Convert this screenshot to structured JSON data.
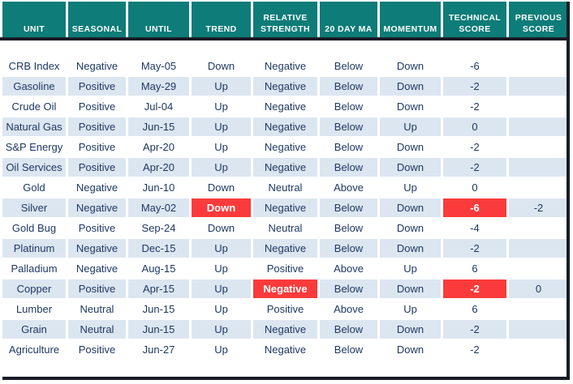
{
  "colors": {
    "header_bg": "#0e7c78",
    "header_text": "#ffffff",
    "frame_dark": "#181c26",
    "row_stripe": "#dce6f1",
    "row_plain": "#ffffff",
    "cell_text": "#1f3864",
    "highlight_bg": "#fb3b3b",
    "highlight_text": "#ffffff"
  },
  "table": {
    "columns": [
      {
        "key": "unit",
        "label": "UNIT"
      },
      {
        "key": "seasonal",
        "label": "SEASONAL"
      },
      {
        "key": "until",
        "label": "UNTIL"
      },
      {
        "key": "trend",
        "label": "TREND"
      },
      {
        "key": "relative_strength",
        "label": "RELATIVE STRENGTH"
      },
      {
        "key": "ma20",
        "label": "20 DAY MA"
      },
      {
        "key": "momentum",
        "label": "MOMENTUM"
      },
      {
        "key": "technical_score",
        "label": "TECHNICAL SCORE"
      },
      {
        "key": "previous_score",
        "label": "PREVIOUS SCORE"
      }
    ],
    "rows": [
      {
        "unit": "CRB Index",
        "seasonal": "Negative",
        "until": "May-05",
        "trend": "Down",
        "relative_strength": "Negative",
        "ma20": "Below",
        "momentum": "Down",
        "technical_score": "-6",
        "previous_score": "",
        "highlights": []
      },
      {
        "unit": "Gasoline",
        "seasonal": "Positive",
        "until": "May-29",
        "trend": "Up",
        "relative_strength": "Negative",
        "ma20": "Below",
        "momentum": "Down",
        "technical_score": "-2",
        "previous_score": "",
        "highlights": []
      },
      {
        "unit": "Crude Oil",
        "seasonal": "Positive",
        "until": "Jul-04",
        "trend": "Up",
        "relative_strength": "Negative",
        "ma20": "Below",
        "momentum": "Down",
        "technical_score": "-2",
        "previous_score": "",
        "highlights": []
      },
      {
        "unit": "Natural Gas",
        "seasonal": "Positive",
        "until": "Jun-15",
        "trend": "Up",
        "relative_strength": "Negative",
        "ma20": "Below",
        "momentum": "Up",
        "technical_score": "0",
        "previous_score": "",
        "highlights": []
      },
      {
        "unit": "S&P Energy",
        "seasonal": "Positive",
        "until": "Apr-20",
        "trend": "Up",
        "relative_strength": "Negative",
        "ma20": "Below",
        "momentum": "Down",
        "technical_score": "-2",
        "previous_score": "",
        "highlights": []
      },
      {
        "unit": "Oil Services",
        "seasonal": "Positive",
        "until": "Apr-20",
        "trend": "Up",
        "relative_strength": "Negative",
        "ma20": "Below",
        "momentum": "Down",
        "technical_score": "-2",
        "previous_score": "",
        "highlights": []
      },
      {
        "unit": "Gold",
        "seasonal": "Negative",
        "until": "Jun-10",
        "trend": "Down",
        "relative_strength": "Neutral",
        "ma20": "Above",
        "momentum": "Up",
        "technical_score": "0",
        "previous_score": "",
        "highlights": []
      },
      {
        "unit": "Silver",
        "seasonal": "Negative",
        "until": "May-02",
        "trend": "Down",
        "relative_strength": "Negative",
        "ma20": "Below",
        "momentum": "Down",
        "technical_score": "-6",
        "previous_score": "-2",
        "highlights": [
          "trend",
          "technical_score"
        ]
      },
      {
        "unit": "Gold Bug",
        "seasonal": "Positive",
        "until": "Sep-24",
        "trend": "Down",
        "relative_strength": "Neutral",
        "ma20": "Below",
        "momentum": "Down",
        "technical_score": "-4",
        "previous_score": "",
        "highlights": []
      },
      {
        "unit": "Platinum",
        "seasonal": "Negative",
        "until": "Dec-15",
        "trend": "Up",
        "relative_strength": "Negative",
        "ma20": "Below",
        "momentum": "Down",
        "technical_score": "-2",
        "previous_score": "",
        "highlights": []
      },
      {
        "unit": "Palladium",
        "seasonal": "Negative",
        "until": "Aug-15",
        "trend": "Up",
        "relative_strength": "Positive",
        "ma20": "Above",
        "momentum": "Up",
        "technical_score": "6",
        "previous_score": "",
        "highlights": []
      },
      {
        "unit": "Copper",
        "seasonal": "Positive",
        "until": "Apr-15",
        "trend": "Up",
        "relative_strength": "Negative",
        "ma20": "Below",
        "momentum": "Down",
        "technical_score": "-2",
        "previous_score": "0",
        "highlights": [
          "relative_strength",
          "technical_score"
        ]
      },
      {
        "unit": "Lumber",
        "seasonal": "Neutral",
        "until": "Jun-15",
        "trend": "Up",
        "relative_strength": "Positive",
        "ma20": "Above",
        "momentum": "Up",
        "technical_score": "6",
        "previous_score": "",
        "highlights": []
      },
      {
        "unit": "Grain",
        "seasonal": "Neutral",
        "until": "Jun-15",
        "trend": "Up",
        "relative_strength": "Negative",
        "ma20": "Below",
        "momentum": "Down",
        "technical_score": "-2",
        "previous_score": "",
        "highlights": []
      },
      {
        "unit": "Agriculture",
        "seasonal": "Positive",
        "until": "Jun-27",
        "trend": "Up",
        "relative_strength": "Negative",
        "ma20": "Below",
        "momentum": "Down",
        "technical_score": "-2",
        "previous_score": "",
        "highlights": []
      }
    ]
  }
}
